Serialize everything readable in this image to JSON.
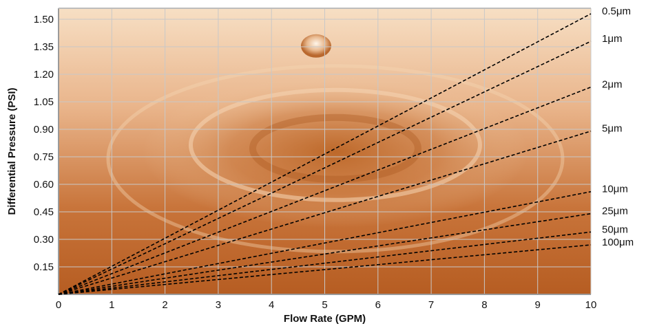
{
  "chart_data": {
    "type": "line",
    "title": "",
    "xlabel": "Flow Rate (GPM)",
    "ylabel": "Differential Pressure (PSI)",
    "xlim": [
      0,
      10
    ],
    "ylim": [
      0,
      1.56
    ],
    "x_ticks": [
      "0",
      "1",
      "2",
      "3",
      "4",
      "5",
      "6",
      "7",
      "8",
      "9",
      "10"
    ],
    "y_ticks": [
      "0.15",
      "0.30",
      "0.45",
      "0.60",
      "0.75",
      "0.90",
      "1.05",
      "1.20",
      "1.35",
      "1.50"
    ],
    "grid": true,
    "line_style": "dashed",
    "line_color": "#000000",
    "series": [
      {
        "name": "0.5μm",
        "x": [
          0,
          10
        ],
        "y": [
          0,
          1.53
        ]
      },
      {
        "name": "1μm",
        "x": [
          0,
          10
        ],
        "y": [
          0,
          1.38
        ]
      },
      {
        "name": "2μm",
        "x": [
          0,
          10
        ],
        "y": [
          0,
          1.13
        ]
      },
      {
        "name": "5μm",
        "x": [
          0,
          10
        ],
        "y": [
          0,
          0.89
        ]
      },
      {
        "name": "10μm",
        "x": [
          0,
          10
        ],
        "y": [
          0,
          0.56
        ]
      },
      {
        "name": "25μm",
        "x": [
          0,
          10
        ],
        "y": [
          0,
          0.44
        ]
      },
      {
        "name": "50μm",
        "x": [
          0,
          10
        ],
        "y": [
          0,
          0.34
        ]
      },
      {
        "name": "100μm",
        "x": [
          0,
          10
        ],
        "y": [
          0,
          0.27
        ]
      }
    ],
    "colors": {
      "background_light": "#f6dcc0",
      "background_mid": "#e2a06b",
      "background_dark": "#bb6227",
      "grid": "#c8c8c8",
      "axis": "#9a9a9a"
    }
  }
}
